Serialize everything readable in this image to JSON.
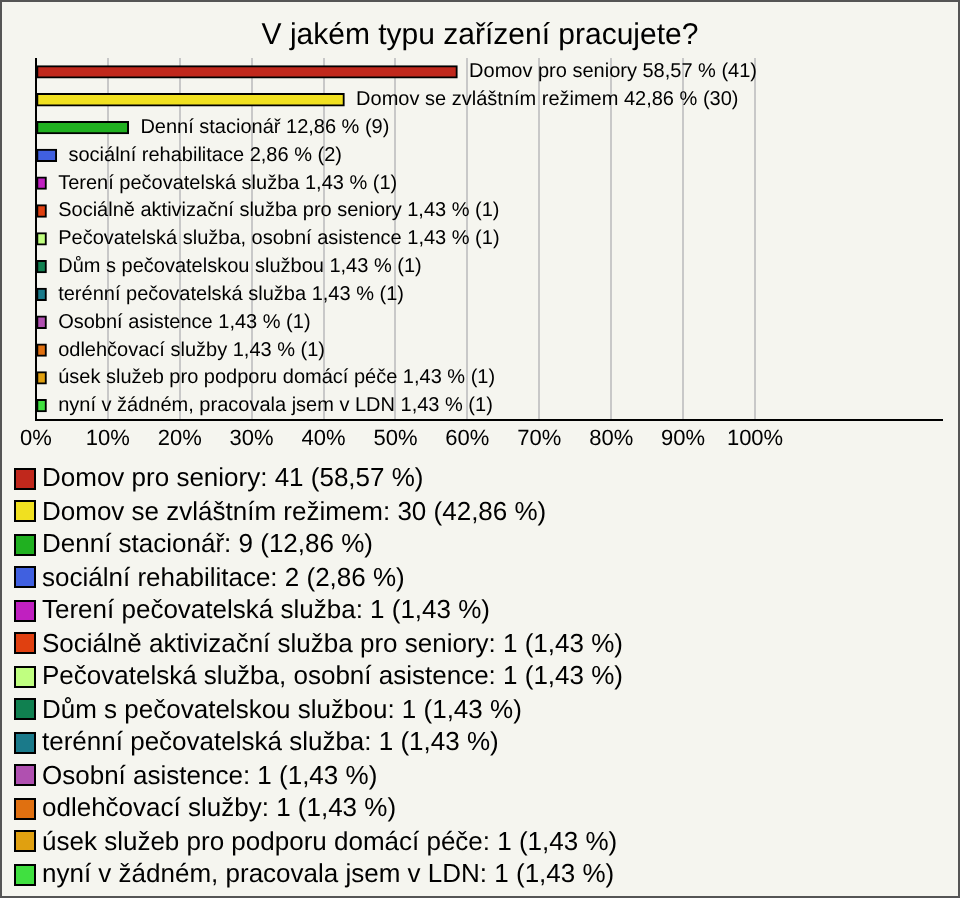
{
  "chart_data": {
    "type": "bar",
    "orientation": "horizontal",
    "title": "V jakém typu zařízení pracujete?",
    "categories": [
      "Domov pro seniory",
      "Domov se zvláštním režimem",
      "Denní stacionář",
      "sociální rehabilitace",
      "Terení pečovatelská služba",
      "Sociálně aktivizační služba pro seniory",
      "Pečovatelská služba, osobní asistence",
      "Dům s pečovatelskou službou",
      "terénní pečovatelská služba",
      "Osobní asistence",
      "odlehčovací služby",
      "úsek služeb pro podporu domácí péče",
      "nyní v žádném, pracovala jsem v LDN"
    ],
    "values": [
      58.57,
      42.86,
      12.86,
      2.86,
      1.43,
      1.43,
      1.43,
      1.43,
      1.43,
      1.43,
      1.43,
      1.43,
      1.43
    ],
    "value_labels": [
      "58,57 % (41)",
      "42,86 % (30)",
      "12,86 % (9)",
      "2,86 % (2)",
      "1,43 % (1)",
      "1,43 % (1)",
      "1,43 % (1)",
      "1,43 % (1)",
      "1,43 % (1)",
      "1,43 % (1)",
      "1,43 % (1)",
      "1,43 % (1)",
      "1,43 % (1)"
    ],
    "colors": [
      "#c0281c",
      "#f0e020",
      "#20b020",
      "#4060e0",
      "#c020c0",
      "#e04010",
      "#c0ff80",
      "#108050",
      "#1a7a8a",
      "#b050b0",
      "#e07010",
      "#e0a010",
      "#40e040"
    ],
    "xlim": [
      0,
      126
    ],
    "xticks": [
      {
        "value": 0,
        "label": "0%"
      },
      {
        "value": 10,
        "label": "10%"
      },
      {
        "value": 20,
        "label": "20%"
      },
      {
        "value": 30,
        "label": "30%"
      },
      {
        "value": 40,
        "label": "40%"
      },
      {
        "value": 50,
        "label": "50%"
      },
      {
        "value": 60,
        "label": "60%"
      },
      {
        "value": 70,
        "label": "70%"
      },
      {
        "value": 80,
        "label": "80%"
      },
      {
        "value": 90,
        "label": "90%"
      },
      {
        "value": 100,
        "label": "100%"
      }
    ],
    "grid": "x",
    "tick_labels": "x",
    "annotations": [
      "Domov pro seniory: 41 (58,57 %)",
      "Domov se zvláštním režimem: 30 (42,86 %)",
      "Denní stacionář: 9 (12,86 %)",
      "sociální rehabilitace: 2 (2,86 %)",
      "Terení pečovatelská služba: 1 (1,43 %)",
      "Sociálně aktivizační služba pro seniory: 1 (1,43 %)",
      "Pečovatelská služba, osobní asistence: 1 (1,43 %)",
      "Dům s pečovatelskou službou: 1 (1,43 %)",
      "terénní pečovatelská služba: 1 (1,43 %)",
      "Osobní asistence: 1 (1,43 %)",
      "odlehčovací služby: 1 (1,43 %)",
      "úsek služeb pro podporu domácí péče: 1 (1,43 %)",
      "nyní v žádném, pracovala jsem v LDN: 1 (1,43 %)"
    ]
  }
}
